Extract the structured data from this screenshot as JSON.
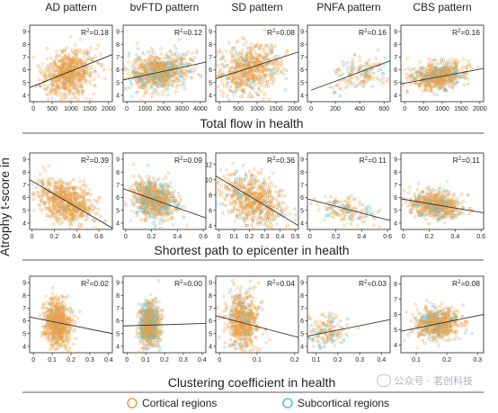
{
  "figure": {
    "y_axis_label": "Atrophy t-score in",
    "legend": {
      "cortical": {
        "label": "Cortical regions",
        "color": "#e8a04c"
      },
      "subcortical": {
        "label": "Subcortical regions",
        "color": "#5bc3d6"
      }
    },
    "watermark": "公众号 · 茗创科技"
  },
  "chart_data": [
    {
      "type": "scatter",
      "row_title": "Total flow in health",
      "panels": [
        {
          "title": "AD pattern",
          "r2": "0.18",
          "xlim": [
            -100,
            2100
          ],
          "ylim": [
            3.5,
            9.5
          ],
          "xticks": [
            0,
            500,
            1000,
            1500,
            2000
          ],
          "yticks": [
            4,
            5,
            6,
            7,
            8,
            9
          ],
          "fit": {
            "x": [
              -100,
              2100
            ],
            "y": [
              4.6,
              7.2
            ]
          },
          "cloud": {
            "x_center": 900,
            "x_spread": 350,
            "y_center": 5.6,
            "y_spread": 0.9,
            "n": 700,
            "sub_fraction": 0.03
          }
        },
        {
          "title": "bvFTD pattern",
          "r2": "0.12",
          "xlim": [
            -200,
            4300
          ],
          "ylim": [
            3.5,
            9.5
          ],
          "xticks": [
            0,
            1000,
            2000,
            3000,
            4000
          ],
          "yticks": [
            4,
            5,
            6,
            7,
            8,
            9
          ],
          "fit": {
            "x": [
              -200,
              4300
            ],
            "y": [
              5.2,
              6.6
            ]
          },
          "cloud": {
            "x_center": 1800,
            "x_spread": 800,
            "y_center": 5.8,
            "y_spread": 0.7,
            "n": 800,
            "sub_fraction": 0.25
          }
        },
        {
          "title": "SD pattern",
          "r2": "0.08",
          "xlim": [
            -100,
            2100
          ],
          "ylim": [
            3.5,
            9.5
          ],
          "xticks": [
            0,
            500,
            1000,
            1500,
            2000
          ],
          "yticks": [
            4,
            5,
            6,
            7,
            8,
            9
          ],
          "fit": {
            "x": [
              -100,
              2100
            ],
            "y": [
              5.3,
              7.4
            ]
          },
          "cloud": {
            "x_center": 800,
            "x_spread": 400,
            "y_center": 5.9,
            "y_spread": 1.0,
            "n": 650,
            "sub_fraction": 0.1
          }
        },
        {
          "title": "PNFA pattern",
          "r2": "0.16",
          "xlim": [
            -30,
            650
          ],
          "ylim": [
            3.5,
            9.5
          ],
          "xticks": [
            0,
            200,
            400,
            600
          ],
          "yticks": [
            4,
            5,
            6,
            7,
            8,
            9
          ],
          "fit": {
            "x": [
              0,
              650
            ],
            "y": [
              4.4,
              6.7
            ]
          },
          "cloud": {
            "x_center": 400,
            "x_spread": 120,
            "y_center": 5.5,
            "y_spread": 0.6,
            "n": 160,
            "sub_fraction": 0.3
          }
        },
        {
          "title": "CBS pattern",
          "r2": "0.16",
          "xlim": [
            -100,
            2100
          ],
          "ylim": [
            3.5,
            9.5
          ],
          "xticks": [
            0,
            500,
            1000,
            1500,
            2000
          ],
          "yticks": [
            4,
            5,
            6,
            7,
            8,
            9
          ],
          "fit": {
            "x": [
              -100,
              2100
            ],
            "y": [
              4.9,
              6.1
            ]
          },
          "cloud": {
            "x_center": 900,
            "x_spread": 350,
            "y_center": 5.6,
            "y_spread": 0.5,
            "n": 650,
            "sub_fraction": 0.2
          }
        }
      ]
    },
    {
      "type": "scatter",
      "row_title": "Shortest path to epicenter in health",
      "panels": [
        {
          "title": "AD pattern",
          "r2": "0.39",
          "xlim": [
            -0.02,
            0.72
          ],
          "ylim": [
            3.5,
            9.5
          ],
          "xticks": [
            0.0,
            0.2,
            0.4,
            0.6
          ],
          "yticks": [
            4,
            5,
            6,
            7,
            8,
            9
          ],
          "fit": {
            "x": [
              -0.02,
              0.72
            ],
            "y": [
              7.4,
              3.6
            ]
          },
          "cloud": {
            "x_center": 0.3,
            "x_spread": 0.12,
            "y_center": 5.6,
            "y_spread": 0.8,
            "n": 700,
            "sub_fraction": 0.03
          }
        },
        {
          "title": "bvFTD pattern",
          "r2": "0.09",
          "xlim": [
            -0.02,
            0.62
          ],
          "ylim": [
            3.5,
            9.5
          ],
          "xticks": [
            0.0,
            0.2,
            0.4,
            0.6
          ],
          "yticks": [
            4,
            5,
            6,
            7,
            8,
            9
          ],
          "fit": {
            "x": [
              -0.02,
              0.62
            ],
            "y": [
              6.7,
              4.4
            ]
          },
          "cloud": {
            "x_center": 0.22,
            "x_spread": 0.08,
            "y_center": 5.8,
            "y_spread": 0.7,
            "n": 800,
            "sub_fraction": 0.25
          }
        },
        {
          "title": "SD pattern",
          "r2": "0.36",
          "xlim": [
            -0.02,
            0.52
          ],
          "ylim": [
            3.5,
            13.5
          ],
          "xticks": [
            0.0,
            0.1,
            0.2,
            0.3,
            0.4,
            0.5
          ],
          "yticks": [
            4,
            6,
            8,
            10,
            12
          ],
          "fit": {
            "x": [
              -0.02,
              0.52
            ],
            "y": [
              10.5,
              4.0
            ]
          },
          "cloud": {
            "x_center": 0.22,
            "x_spread": 0.1,
            "y_center": 7.0,
            "y_spread": 1.6,
            "n": 650,
            "sub_fraction": 0.1
          }
        },
        {
          "title": "PNFA pattern",
          "r2": "0.11",
          "xlim": [
            -0.02,
            0.62
          ],
          "ylim": [
            3.5,
            9.5
          ],
          "xticks": [
            0.0,
            0.2,
            0.4,
            0.6
          ],
          "yticks": [
            4,
            5,
            6,
            7,
            8,
            9
          ],
          "fit": {
            "x": [
              -0.02,
              0.62
            ],
            "y": [
              5.9,
              4.2
            ]
          },
          "cloud": {
            "x_center": 0.3,
            "x_spread": 0.1,
            "y_center": 5.0,
            "y_spread": 0.5,
            "n": 160,
            "sub_fraction": 0.3
          }
        },
        {
          "title": "CBS pattern",
          "r2": "0.11",
          "xlim": [
            -0.02,
            0.62
          ],
          "ylim": [
            3.5,
            9.5
          ],
          "xticks": [
            0.0,
            0.2,
            0.4,
            0.6
          ],
          "yticks": [
            4,
            5,
            6,
            7,
            8,
            9
          ],
          "fit": {
            "x": [
              -0.02,
              0.62
            ],
            "y": [
              5.9,
              4.8
            ]
          },
          "cloud": {
            "x_center": 0.25,
            "x_spread": 0.1,
            "y_center": 5.4,
            "y_spread": 0.5,
            "n": 650,
            "sub_fraction": 0.2
          }
        }
      ]
    },
    {
      "type": "scatter",
      "row_title": "Clustering coefficient in health",
      "panels": [
        {
          "title": "AD pattern",
          "r2": "0.02",
          "xlim": [
            -0.02,
            0.42
          ],
          "ylim": [
            3.5,
            9.5
          ],
          "xticks": [
            0.0,
            0.1,
            0.2,
            0.3,
            0.4
          ],
          "yticks": [
            4,
            5,
            6,
            7,
            8,
            9
          ],
          "fit": {
            "x": [
              -0.02,
              0.42
            ],
            "y": [
              6.3,
              5.0
            ]
          },
          "cloud": {
            "x_center": 0.13,
            "x_spread": 0.035,
            "y_center": 5.8,
            "y_spread": 0.9,
            "n": 700,
            "sub_fraction": 0.03
          }
        },
        {
          "title": "bvFTD pattern",
          "r2": "0.00",
          "xlim": [
            -0.02,
            0.42
          ],
          "ylim": [
            3.5,
            9.5
          ],
          "xticks": [
            0.0,
            0.1,
            0.2,
            0.3,
            0.4
          ],
          "yticks": [
            4,
            5,
            6,
            7,
            8,
            9
          ],
          "fit": {
            "x": [
              -0.02,
              0.42
            ],
            "y": [
              5.6,
              5.8
            ]
          },
          "cloud": {
            "x_center": 0.12,
            "x_spread": 0.025,
            "y_center": 5.8,
            "y_spread": 0.8,
            "n": 800,
            "sub_fraction": 0.3
          }
        },
        {
          "title": "SD pattern",
          "r2": "0.04",
          "xlim": [
            -0.01,
            0.21
          ],
          "ylim": [
            3.5,
            9.5
          ],
          "xticks": [
            0.0,
            0.1,
            0.2
          ],
          "yticks": [
            4,
            5,
            6,
            7,
            8,
            9
          ],
          "fit": {
            "x": [
              -0.01,
              0.21
            ],
            "y": [
              6.4,
              4.7
            ]
          },
          "cloud": {
            "x_center": 0.06,
            "x_spread": 0.022,
            "y_center": 6.0,
            "y_spread": 1.1,
            "n": 650,
            "sub_fraction": 0.1
          }
        },
        {
          "title": "PNFA pattern",
          "r2": "0.03",
          "xlim": [
            0.06,
            0.44
          ],
          "ylim": [
            3.5,
            9.5
          ],
          "xticks": [
            0.1,
            0.2,
            0.3,
            0.4
          ],
          "yticks": [
            4,
            5,
            6,
            7,
            8,
            9
          ],
          "fit": {
            "x": [
              0.06,
              0.44
            ],
            "y": [
              4.8,
              6.1
            ]
          },
          "cloud": {
            "x_center": 0.15,
            "x_spread": 0.04,
            "y_center": 5.2,
            "y_spread": 0.6,
            "n": 160,
            "sub_fraction": 0.3
          }
        },
        {
          "title": "CBS pattern",
          "r2": "0.08",
          "xlim": [
            0.05,
            0.32
          ],
          "ylim": [
            3.5,
            8.5
          ],
          "xticks": [
            0.1,
            0.2,
            0.3
          ],
          "yticks": [
            4,
            5,
            6,
            7,
            8
          ],
          "fit": {
            "x": [
              0.05,
              0.32
            ],
            "y": [
              4.9,
              6.0
            ]
          },
          "cloud": {
            "x_center": 0.17,
            "x_spread": 0.035,
            "y_center": 5.4,
            "y_spread": 0.5,
            "n": 650,
            "sub_fraction": 0.2
          }
        }
      ]
    }
  ]
}
